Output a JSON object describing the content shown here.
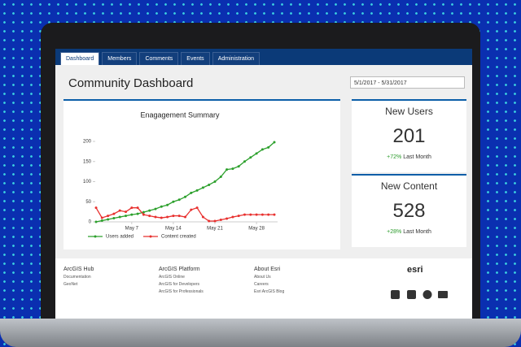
{
  "tabs": [
    "Dashboard",
    "Members",
    "Comments",
    "Events",
    "Administration"
  ],
  "header": {
    "title": "Community Dashboard",
    "date_range": "5/1/2017 - 5/31/2017"
  },
  "chart_data": {
    "type": "line",
    "title": "Enagagement Summary",
    "categories": [
      null,
      null,
      null,
      null,
      null,
      null,
      "May 7",
      null,
      null,
      null,
      null,
      null,
      null,
      "May 14",
      null,
      null,
      null,
      null,
      null,
      null,
      "May 21",
      null,
      null,
      null,
      null,
      null,
      null,
      "May 28",
      null,
      null,
      null
    ],
    "series": [
      {
        "name": "Users added",
        "color": "#2ca02c",
        "values": [
          0,
          3,
          6,
          9,
          12,
          15,
          18,
          20,
          24,
          28,
          32,
          38,
          42,
          50,
          55,
          62,
          72,
          78,
          85,
          92,
          100,
          112,
          130,
          132,
          138,
          150,
          160,
          170,
          180,
          185,
          198
        ]
      },
      {
        "name": "Content created",
        "color": "#e8312f",
        "values": [
          35,
          10,
          15,
          20,
          28,
          25,
          35,
          35,
          18,
          15,
          12,
          10,
          12,
          15,
          15,
          12,
          30,
          35,
          12,
          2,
          2,
          5,
          8,
          12,
          15,
          18,
          18,
          18,
          18,
          18,
          18
        ]
      }
    ],
    "ylim": [
      0,
      200
    ],
    "yticks": [
      0,
      50,
      100,
      150,
      200
    ],
    "grid": false
  },
  "stats": [
    {
      "title": "New Users",
      "value": 201,
      "change": "+72%",
      "period": "Last Month"
    },
    {
      "title": "New Content",
      "value": 528,
      "change": "+28%",
      "period": "Last Month"
    }
  ],
  "footer": {
    "columns": [
      {
        "heading": "ArcGIS Hub",
        "links": [
          "Documentation",
          "GeoNet"
        ]
      },
      {
        "heading": "ArcGIS Platform",
        "links": [
          "ArcGIS Online",
          "ArcGIS for Developers",
          "ArcGIS for Professionals"
        ]
      },
      {
        "heading": "About Esri",
        "links": [
          "About Us",
          "Careers",
          "Esri ArcGIS Blog"
        ]
      }
    ],
    "brand": "esri"
  }
}
